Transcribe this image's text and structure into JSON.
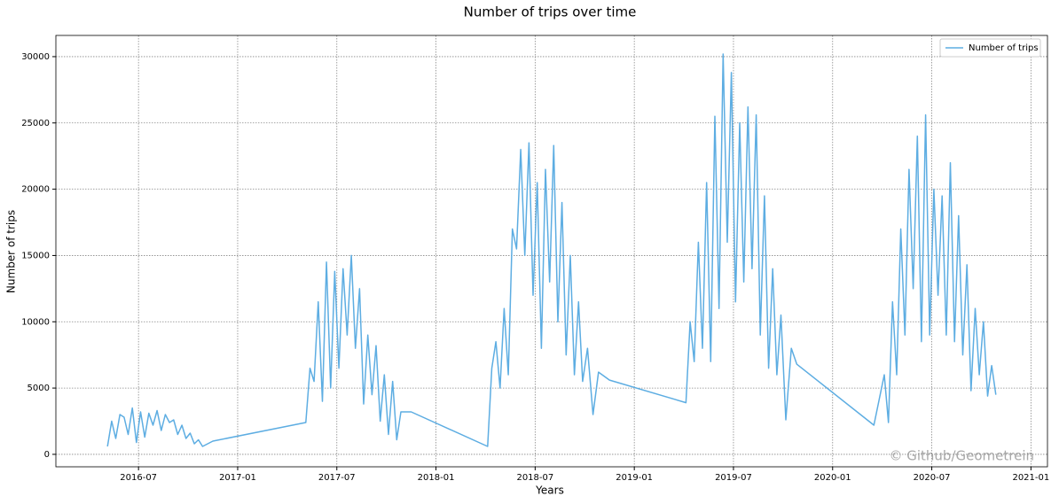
{
  "chart_data": {
    "type": "line",
    "title": "Number of trips over time",
    "x_label": "Years",
    "y_label": "Number of trips",
    "annotation": "© Github/Geometrein",
    "legend": "upper right",
    "grid": true,
    "x": [
      "2016-05",
      "2016-05",
      "2016-05",
      "2016-05",
      "2016-06",
      "2016-06",
      "2016-06",
      "2016-06",
      "2016-07",
      "2016-07",
      "2016-07",
      "2016-07",
      "2016-08",
      "2016-08",
      "2016-08",
      "2016-08",
      "2016-09",
      "2016-09",
      "2016-09",
      "2016-09",
      "2016-10",
      "2016-10",
      "2016-10",
      "2016-10",
      "2016-11",
      "2017-05",
      "2017-05",
      "2017-05",
      "2017-05",
      "2017-06",
      "2017-06",
      "2017-06",
      "2017-06",
      "2017-07",
      "2017-07",
      "2017-07",
      "2017-07",
      "2017-08",
      "2017-08",
      "2017-08",
      "2017-08",
      "2017-09",
      "2017-09",
      "2017-09",
      "2017-09",
      "2017-10",
      "2017-10",
      "2017-10",
      "2017-10",
      "2017-11",
      "2018-04",
      "2018-04",
      "2018-04",
      "2018-04",
      "2018-05",
      "2018-05",
      "2018-05",
      "2018-05",
      "2018-06",
      "2018-06",
      "2018-06",
      "2018-06",
      "2018-07",
      "2018-07",
      "2018-07",
      "2018-07",
      "2018-08",
      "2018-08",
      "2018-08",
      "2018-08",
      "2018-09",
      "2018-09",
      "2018-09",
      "2018-09",
      "2018-10",
      "2018-10",
      "2018-10",
      "2018-11",
      "2019-04",
      "2019-04",
      "2019-04",
      "2019-04",
      "2019-05",
      "2019-05",
      "2019-05",
      "2019-05",
      "2019-06",
      "2019-06",
      "2019-06",
      "2019-06",
      "2019-07",
      "2019-07",
      "2019-07",
      "2019-07",
      "2019-08",
      "2019-08",
      "2019-08",
      "2019-08",
      "2019-09",
      "2019-09",
      "2019-09",
      "2019-09",
      "2019-10",
      "2019-10",
      "2019-10",
      "2020-03",
      "2020-04",
      "2020-04",
      "2020-04",
      "2020-04",
      "2020-05",
      "2020-05",
      "2020-05",
      "2020-05",
      "2020-06",
      "2020-06",
      "2020-06",
      "2020-06",
      "2020-07",
      "2020-07",
      "2020-07",
      "2020-07",
      "2020-08",
      "2020-08",
      "2020-08",
      "2020-08",
      "2020-09",
      "2020-09",
      "2020-09",
      "2020-09",
      "2020-10",
      "2020-10",
      "2020-10",
      "2020-10"
    ],
    "series": [
      {
        "name": "Number of trips",
        "color": "#5dade2",
        "values": [
          600,
          2500,
          1200,
          3000,
          2800,
          1500,
          3500,
          900,
          3200,
          1300,
          3100,
          2200,
          3300,
          1800,
          3000,
          2400,
          2600,
          1500,
          2200,
          1200,
          1600,
          800,
          1100,
          600,
          1000,
          2400,
          6500,
          5500,
          11500,
          4000,
          14500,
          5000,
          13800,
          6500,
          14000,
          9000,
          15000,
          8000,
          12500,
          3800,
          9000,
          4500,
          8200,
          2500,
          6000,
          1500,
          5500,
          1100,
          3200,
          3200,
          600,
          6500,
          8500,
          5000,
          11000,
          6000,
          17000,
          15500,
          23000,
          15000,
          23500,
          12000,
          20500,
          8000,
          21500,
          13000,
          23300,
          10000,
          19000,
          7500,
          15000,
          6000,
          11500,
          5500,
          8000,
          3000,
          6200,
          5600,
          3900,
          10000,
          7000,
          16000,
          8000,
          20500,
          7000,
          25500,
          11000,
          30200,
          16000,
          28800,
          11500,
          25000,
          13000,
          26200,
          14000,
          25600,
          9000,
          19500,
          6500,
          14000,
          6000,
          10500,
          2600,
          8000,
          6800,
          2200,
          6000,
          2400,
          11500,
          6000,
          17000,
          9000,
          21500,
          12500,
          24000,
          8500,
          25600,
          9000,
          20000,
          12000,
          19500,
          9000,
          22000,
          8500,
          18000,
          7500,
          14300,
          4800,
          11000,
          6000,
          10000,
          4400,
          6700,
          4500
        ]
      }
    ],
    "xlim": [
      "2016-02",
      "2021-02"
    ],
    "xticks": [
      "2016-07",
      "2017-01",
      "2017-07",
      "2018-01",
      "2018-07",
      "2019-01",
      "2019-07",
      "2020-01",
      "2020-07",
      "2021-01"
    ],
    "ylim": [
      -940,
      31600
    ],
    "yticks": [
      0,
      5000,
      10000,
      15000,
      20000,
      25000,
      30000
    ]
  }
}
